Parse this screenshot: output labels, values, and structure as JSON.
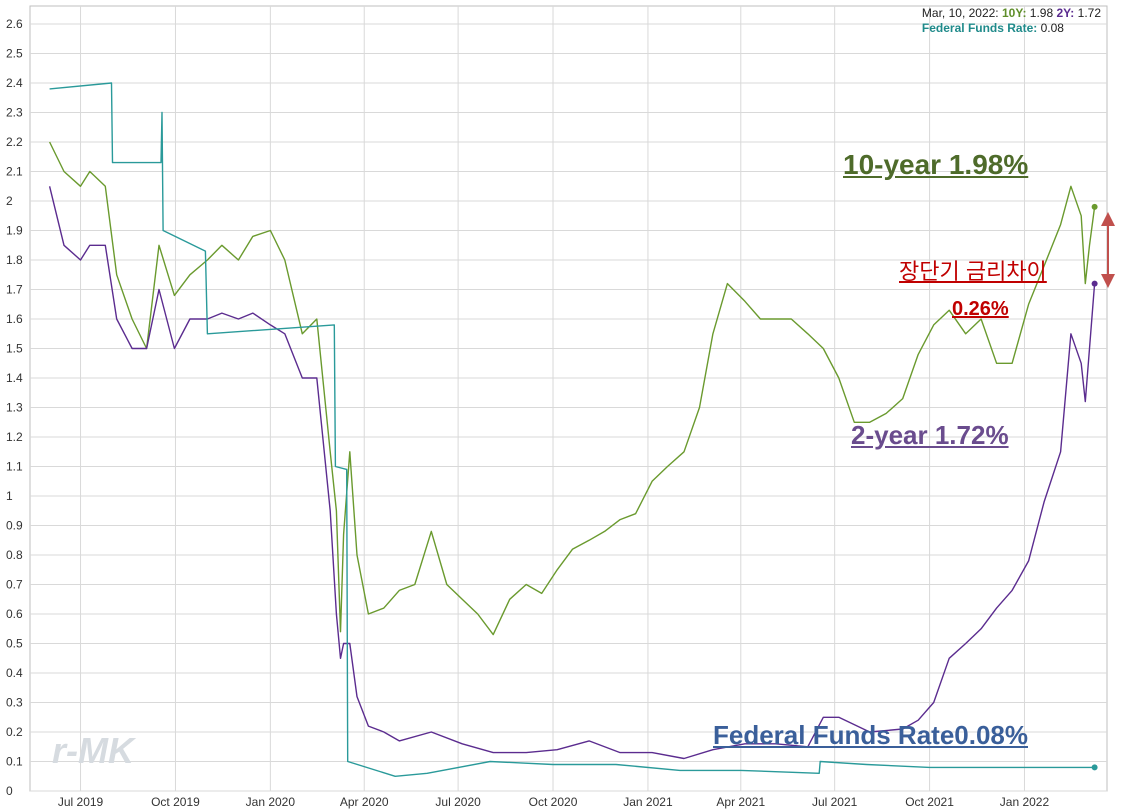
{
  "info": {
    "date": "Mar, 10, 2022:",
    "k10": "10Y:",
    "v10": "1.98",
    "k2": "2Y:",
    "v2": "1.72",
    "kff": "Federal Funds Rate:",
    "vff": "0.08"
  },
  "annotations": {
    "ten_year": "10-year 1.98%",
    "two_year": "2-year 1.72%",
    "fed_funds": "Federal Funds Rate0.08%",
    "spread_label": "장단기 금리차이",
    "spread_value": "0.26%"
  },
  "logo": "r-MK",
  "colors": {
    "ten_year": "#6a9a2e",
    "two_year": "#5b2c8f",
    "fed_funds": "#2a9a9a",
    "arrow": "#c0504d",
    "grid": "#d9d9d9"
  },
  "chart_data": {
    "type": "line",
    "title": "",
    "xlabel": "",
    "ylabel": "",
    "ylim": [
      0,
      2.65
    ],
    "y_ticks": [
      "0",
      "0.1",
      "0.2",
      "0.3",
      "0.4",
      "0.5",
      "0.6",
      "0.7",
      "0.8",
      "0.9",
      "1",
      "1.1",
      "1.2",
      "1.3",
      "1.4",
      "1.5",
      "1.6",
      "1.7",
      "1.8",
      "1.9",
      "2",
      "2.1",
      "2.2",
      "2.3",
      "2.4",
      "2.5",
      "2.6"
    ],
    "x_ticks": [
      "Jul 2019",
      "Oct 2019",
      "Jan 2020",
      "Apr 2020",
      "Jul 2020",
      "Oct 2020",
      "Jan 2021",
      "Apr 2021",
      "Jul 2021",
      "Oct 2021",
      "Jan 2022"
    ],
    "grid": true,
    "series": [
      {
        "name": "10Y",
        "x": [
          "2019-06-01",
          "2019-06-15",
          "2019-07-01",
          "2019-07-10",
          "2019-07-25",
          "2019-08-05",
          "2019-08-20",
          "2019-09-03",
          "2019-09-15",
          "2019-09-30",
          "2019-10-15",
          "2019-11-01",
          "2019-11-15",
          "2019-12-01",
          "2019-12-15",
          "2020-01-01",
          "2020-01-15",
          "2020-02-01",
          "2020-02-15",
          "2020-02-28",
          "2020-03-05",
          "2020-03-09",
          "2020-03-12",
          "2020-03-18",
          "2020-03-25",
          "2020-04-05",
          "2020-04-20",
          "2020-05-05",
          "2020-05-20",
          "2020-06-05",
          "2020-06-20",
          "2020-07-05",
          "2020-07-20",
          "2020-08-04",
          "2020-08-20",
          "2020-09-05",
          "2020-09-20",
          "2020-10-05",
          "2020-10-20",
          "2020-11-05",
          "2020-11-20",
          "2020-12-05",
          "2020-12-20",
          "2021-01-05",
          "2021-01-20",
          "2021-02-05",
          "2021-02-20",
          "2021-03-05",
          "2021-03-19",
          "2021-04-05",
          "2021-04-20",
          "2021-05-05",
          "2021-05-20",
          "2021-06-05",
          "2021-06-20",
          "2021-07-05",
          "2021-07-20",
          "2021-08-04",
          "2021-08-20",
          "2021-09-05",
          "2021-09-20",
          "2021-10-05",
          "2021-10-20",
          "2021-11-05",
          "2021-11-20",
          "2021-12-05",
          "2021-12-20",
          "2022-01-05",
          "2022-01-20",
          "2022-02-05",
          "2022-02-15",
          "2022-02-25",
          "2022-03-01",
          "2022-03-05",
          "2022-03-10"
        ],
        "values": [
          2.2,
          2.1,
          2.05,
          2.1,
          2.05,
          1.75,
          1.6,
          1.5,
          1.85,
          1.68,
          1.75,
          1.8,
          1.85,
          1.8,
          1.88,
          1.9,
          1.8,
          1.55,
          1.6,
          1.15,
          0.95,
          0.54,
          0.87,
          1.15,
          0.8,
          0.6,
          0.62,
          0.68,
          0.7,
          0.88,
          0.7,
          0.65,
          0.6,
          0.53,
          0.65,
          0.7,
          0.67,
          0.75,
          0.82,
          0.85,
          0.88,
          0.92,
          0.94,
          1.05,
          1.1,
          1.15,
          1.3,
          1.55,
          1.72,
          1.66,
          1.6,
          1.6,
          1.6,
          1.55,
          1.5,
          1.4,
          1.25,
          1.25,
          1.28,
          1.33,
          1.48,
          1.58,
          1.63,
          1.55,
          1.6,
          1.45,
          1.45,
          1.65,
          1.78,
          1.92,
          2.05,
          1.95,
          1.72,
          1.85,
          1.98
        ]
      },
      {
        "name": "2Y",
        "x": [
          "2019-06-01",
          "2019-06-15",
          "2019-07-01",
          "2019-07-10",
          "2019-07-25",
          "2019-08-05",
          "2019-08-20",
          "2019-09-03",
          "2019-09-15",
          "2019-09-30",
          "2019-10-15",
          "2019-11-01",
          "2019-11-15",
          "2019-12-01",
          "2019-12-15",
          "2020-01-01",
          "2020-01-15",
          "2020-02-01",
          "2020-02-15",
          "2020-02-28",
          "2020-03-05",
          "2020-03-09",
          "2020-03-12",
          "2020-03-18",
          "2020-03-25",
          "2020-04-05",
          "2020-04-20",
          "2020-05-05",
          "2020-06-05",
          "2020-07-05",
          "2020-08-04",
          "2020-09-05",
          "2020-10-05",
          "2020-11-05",
          "2020-12-05",
          "2021-01-05",
          "2021-02-05",
          "2021-03-05",
          "2021-04-05",
          "2021-05-05",
          "2021-06-05",
          "2021-06-20",
          "2021-07-05",
          "2021-08-04",
          "2021-09-05",
          "2021-09-20",
          "2021-10-05",
          "2021-10-20",
          "2021-11-05",
          "2021-11-20",
          "2021-12-05",
          "2021-12-20",
          "2022-01-05",
          "2022-01-20",
          "2022-02-05",
          "2022-02-15",
          "2022-02-25",
          "2022-03-01",
          "2022-03-05",
          "2022-03-10"
        ],
        "values": [
          2.05,
          1.85,
          1.8,
          1.85,
          1.85,
          1.6,
          1.5,
          1.5,
          1.7,
          1.5,
          1.6,
          1.6,
          1.62,
          1.6,
          1.62,
          1.58,
          1.55,
          1.4,
          1.4,
          0.95,
          0.6,
          0.45,
          0.5,
          0.5,
          0.32,
          0.22,
          0.2,
          0.17,
          0.2,
          0.16,
          0.13,
          0.13,
          0.14,
          0.17,
          0.13,
          0.13,
          0.11,
          0.14,
          0.16,
          0.16,
          0.15,
          0.25,
          0.25,
          0.2,
          0.21,
          0.24,
          0.3,
          0.45,
          0.5,
          0.55,
          0.62,
          0.68,
          0.78,
          0.98,
          1.15,
          1.55,
          1.45,
          1.32,
          1.5,
          1.72
        ]
      },
      {
        "name": "Federal Funds Rate",
        "x": [
          "2019-06-01",
          "2019-07-31",
          "2019-08-01",
          "2019-09-17",
          "2019-09-18",
          "2019-09-19",
          "2019-10-30",
          "2019-11-01",
          "2020-03-03",
          "2020-03-04",
          "2020-03-15",
          "2020-03-16",
          "2020-05-01",
          "2020-06-01",
          "2020-08-01",
          "2020-10-01",
          "2020-12-01",
          "2021-02-01",
          "2021-04-01",
          "2021-06-16",
          "2021-06-17",
          "2021-08-01",
          "2021-10-01",
          "2021-12-01",
          "2022-02-01",
          "2022-03-10"
        ],
        "values": [
          2.38,
          2.4,
          2.13,
          2.13,
          2.3,
          1.9,
          1.83,
          1.55,
          1.58,
          1.1,
          1.09,
          0.1,
          0.05,
          0.06,
          0.1,
          0.09,
          0.09,
          0.07,
          0.07,
          0.06,
          0.1,
          0.09,
          0.08,
          0.08,
          0.08,
          0.08
        ]
      }
    ]
  }
}
